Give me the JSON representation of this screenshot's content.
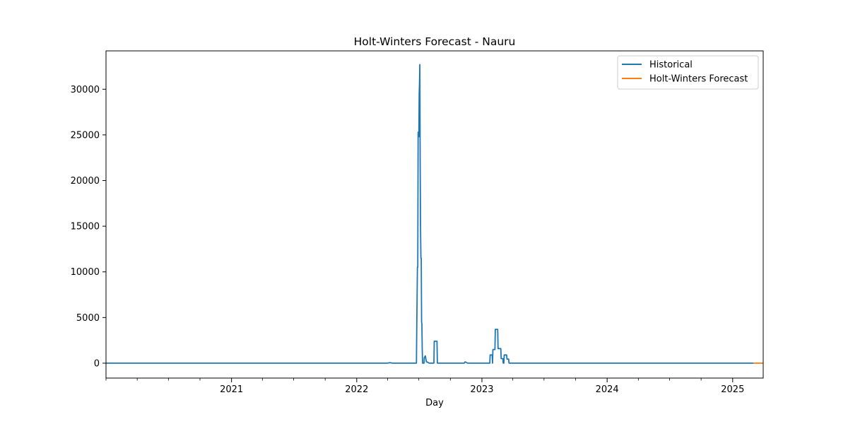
{
  "chart_data": {
    "type": "line",
    "title": "Holt-Winters Forecast - Nauru",
    "xlabel": "Day",
    "ylabel": "",
    "xlim": [
      "2020-01-01",
      "2025-03-31"
    ],
    "ylim": [
      -1630,
      34200
    ],
    "x_ticks": [
      "2021-01-01",
      "2022-01-01",
      "2023-01-01",
      "2024-01-01",
      "2025-01-01"
    ],
    "x_tick_labels": [
      "2021",
      "2022",
      "2023",
      "2024",
      "2025"
    ],
    "y_ticks": [
      0,
      5000,
      10000,
      15000,
      20000,
      25000,
      30000
    ],
    "y_tick_labels": [
      "0",
      "5000",
      "10000",
      "15000",
      "20000",
      "25000",
      "30000"
    ],
    "legend_position": "top-right",
    "grid": false,
    "series": [
      {
        "name": "Historical",
        "color": "#1f77b4",
        "points": [
          [
            "2020-01-01",
            0
          ],
          [
            "2022-03-31",
            0
          ],
          [
            "2022-04-08",
            60
          ],
          [
            "2022-04-15",
            0
          ],
          [
            "2022-06-24",
            0
          ],
          [
            "2022-06-25",
            4200
          ],
          [
            "2022-06-27",
            10500
          ],
          [
            "2022-06-28",
            10500
          ],
          [
            "2022-06-29",
            25300
          ],
          [
            "2022-06-30",
            25300
          ],
          [
            "2022-07-01",
            24800
          ],
          [
            "2022-07-02",
            29500
          ],
          [
            "2022-07-03",
            30500
          ],
          [
            "2022-07-04",
            32700
          ],
          [
            "2022-07-05",
            22000
          ],
          [
            "2022-07-06",
            15000
          ],
          [
            "2022-07-07",
            11500
          ],
          [
            "2022-07-08",
            11500
          ],
          [
            "2022-07-09",
            4500
          ],
          [
            "2022-07-10",
            4300
          ],
          [
            "2022-07-11",
            1500
          ],
          [
            "2022-07-12",
            0
          ],
          [
            "2022-07-16",
            0
          ],
          [
            "2022-07-17",
            600
          ],
          [
            "2022-07-20",
            800
          ],
          [
            "2022-07-23",
            150
          ],
          [
            "2022-07-27",
            100
          ],
          [
            "2022-07-31",
            0
          ],
          [
            "2022-08-14",
            0
          ],
          [
            "2022-08-15",
            2400
          ],
          [
            "2022-08-23",
            2400
          ],
          [
            "2022-08-24",
            0
          ],
          [
            "2022-11-10",
            0
          ],
          [
            "2022-11-13",
            150
          ],
          [
            "2022-11-20",
            0
          ],
          [
            "2023-01-24",
            0
          ],
          [
            "2023-01-25",
            900
          ],
          [
            "2023-01-31",
            900
          ],
          [
            "2023-02-01",
            0
          ],
          [
            "2023-02-02",
            1500
          ],
          [
            "2023-02-08",
            1500
          ],
          [
            "2023-02-09",
            3700
          ],
          [
            "2023-02-16",
            3700
          ],
          [
            "2023-02-17",
            1600
          ],
          [
            "2023-02-25",
            1600
          ],
          [
            "2023-02-26",
            500
          ],
          [
            "2023-03-03",
            500
          ],
          [
            "2023-03-04",
            0
          ],
          [
            "2023-03-06",
            0
          ],
          [
            "2023-03-07",
            900
          ],
          [
            "2023-03-14",
            900
          ],
          [
            "2023-03-15",
            450
          ],
          [
            "2023-03-20",
            450
          ],
          [
            "2023-03-21",
            0
          ],
          [
            "2025-03-03",
            0
          ]
        ]
      },
      {
        "name": "Holt-Winters Forecast",
        "color": "#ff7f0e",
        "points": [
          [
            "2025-03-03",
            0
          ],
          [
            "2025-03-31",
            0
          ]
        ]
      }
    ]
  }
}
